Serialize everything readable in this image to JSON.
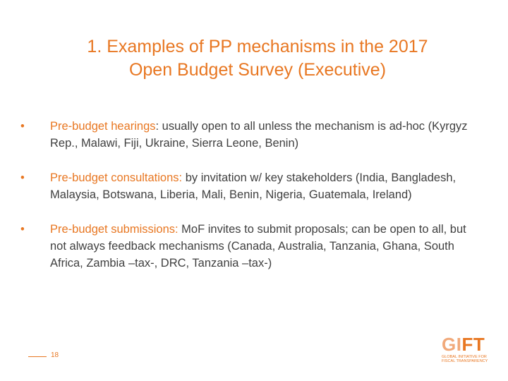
{
  "title": {
    "line1": "1. Examples of  PP mechanisms in the 2017",
    "line2": "Open Budget Survey (Executive)"
  },
  "bullets": [
    {
      "term": "Pre-budget hearings",
      "text": ": usually open to all unless the mechanism is ad-hoc (Kyrgyz Rep., Malawi, Fiji, Ukraine, Sierra Leone, Benin)"
    },
    {
      "term": "Pre-budget consultations:",
      "text": " by invitation w/ key stakeholders (India, Bangladesh, Malaysia, Botswana, Liberia, Mali, Benin, Nigeria, Guatemala, Ireland)"
    },
    {
      "term": "Pre-budget submissions:",
      "text": " MoF invites to submit proposals; can be open to all, but not always feedback mechanisms (Canada, Australia, Tanzania, Ghana, South Africa, Zambia –tax-, DRC, Tanzania –tax-)"
    }
  ],
  "footer": {
    "page_number": "18"
  },
  "logo": {
    "part1": "GI",
    "part2": "FT",
    "sub1": "GLOBAL INITIATIVE FOR",
    "sub2": "FISCAL TRANSPARENCY"
  },
  "colors": {
    "accent": "#e87722",
    "text": "#404040"
  }
}
